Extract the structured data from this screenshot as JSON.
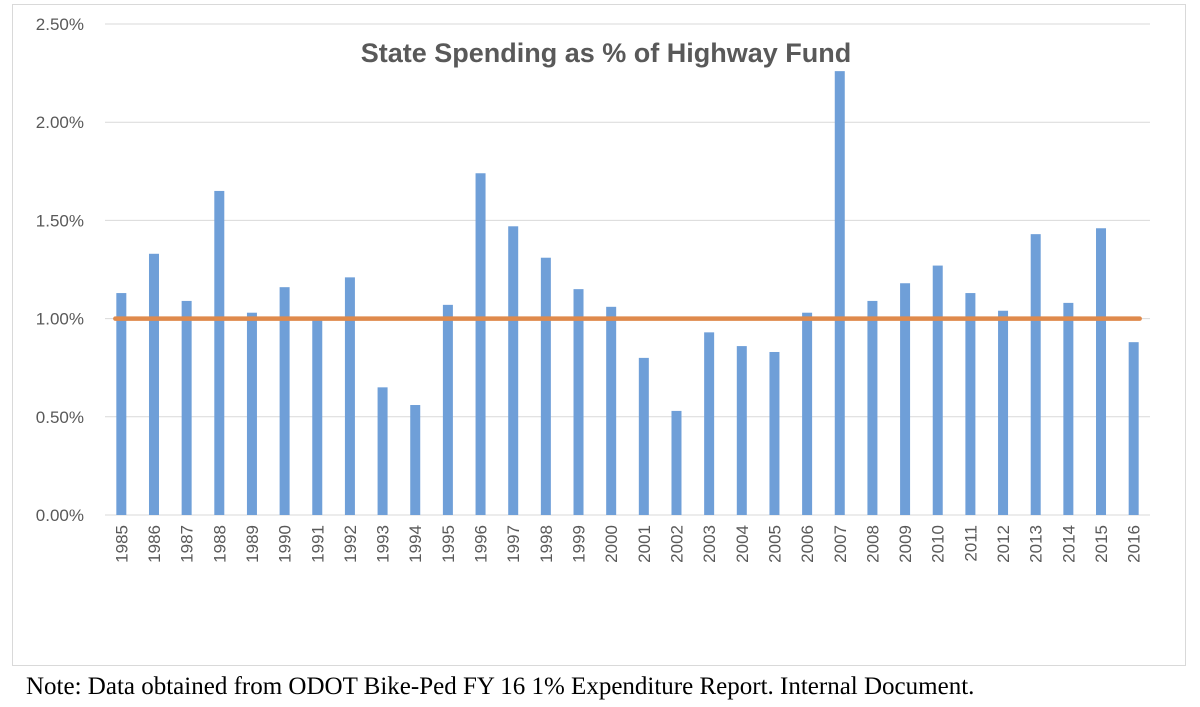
{
  "chart_data": {
    "type": "bar",
    "title": "State Spending as % of Highway Fund",
    "categories": [
      "1985",
      "1986",
      "1987",
      "1988",
      "1989",
      "1990",
      "1991",
      "1992",
      "1993",
      "1994",
      "1995",
      "1996",
      "1997",
      "1998",
      "1999",
      "2000",
      "2001",
      "2002",
      "2003",
      "2004",
      "2005",
      "2006",
      "2007",
      "2008",
      "2009",
      "2010",
      "2011",
      "2012",
      "2013",
      "2014",
      "2015",
      "2016"
    ],
    "values": [
      1.13,
      1.33,
      1.09,
      1.65,
      1.03,
      1.16,
      1.0,
      1.21,
      0.65,
      0.56,
      1.07,
      1.74,
      1.47,
      1.31,
      1.15,
      1.06,
      0.8,
      0.53,
      0.93,
      0.86,
      0.83,
      1.03,
      2.26,
      1.09,
      1.18,
      1.27,
      1.13,
      1.04,
      1.43,
      1.08,
      1.46,
      0.88
    ],
    "reference_line": 1.0,
    "ylim": [
      0,
      2.5
    ],
    "yticks": [
      "0.00%",
      "0.50%",
      "1.00%",
      "1.50%",
      "2.00%",
      "2.50%"
    ],
    "ytick_values": [
      0,
      0.5,
      1.0,
      1.5,
      2.0,
      2.5
    ],
    "xlabel": "",
    "ylabel": "",
    "grid": true,
    "colors": {
      "bar": "#6f9fd8",
      "reference_line": "#df8a4c",
      "grid": "#d9d9d9",
      "axis_text": "#595959"
    }
  },
  "note": "Note: Data obtained from ODOT Bike-Ped FY 16 1% Expenditure Report.  Internal Document."
}
